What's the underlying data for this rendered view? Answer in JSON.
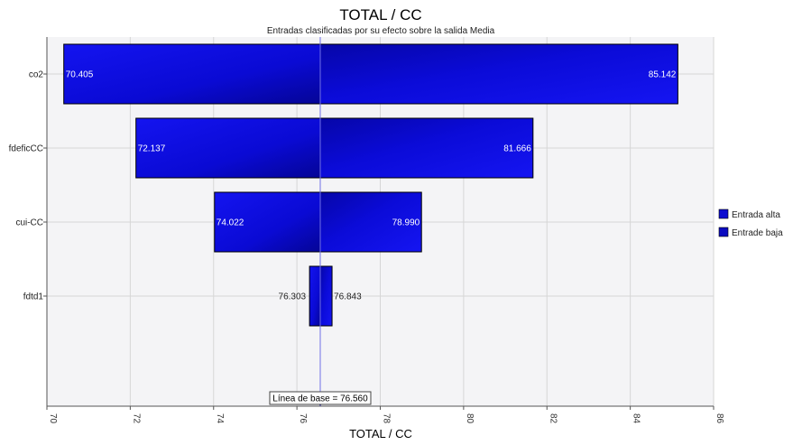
{
  "chart_data": {
    "type": "tornado",
    "title": "TOTAL / CC",
    "subtitle": "Entradas clasificadas por su efecto sobre la salida Media",
    "xlabel": "TOTAL / CC",
    "xlim": [
      70,
      86
    ],
    "xticks": [
      70,
      72,
      74,
      76,
      78,
      80,
      82,
      84,
      86
    ],
    "baseline": 76.56,
    "baseline_label": "Línea de base = 76.560",
    "categories": [
      "co2",
      "fdeficCC",
      "cui-CC",
      "fdtd1"
    ],
    "bars": [
      {
        "name": "co2",
        "low": 70.405,
        "high": 85.142,
        "low_label": "70.405",
        "high_label": "85.142"
      },
      {
        "name": "fdeficCC",
        "low": 72.137,
        "high": 81.666,
        "low_label": "72.137",
        "high_label": "81.666"
      },
      {
        "name": "cui-CC",
        "low": 74.022,
        "high": 78.99,
        "low_label": "74.022",
        "high_label": "78.990"
      },
      {
        "name": "fdtd1",
        "low": 76.303,
        "high": 76.843,
        "low_label": "76.303",
        "high_label": "76.843"
      }
    ],
    "legend": [
      {
        "label": "Entrada alta",
        "color": "#0b0bd0"
      },
      {
        "label": "Entrade baja",
        "color": "#0b0bc0"
      }
    ],
    "colors": {
      "bar": "#0a0ae8",
      "bar_dark": "#04047e",
      "grid": "#d6d6d6",
      "plot_bg": "#f4f4f6",
      "baseline": "#7070e8"
    }
  }
}
